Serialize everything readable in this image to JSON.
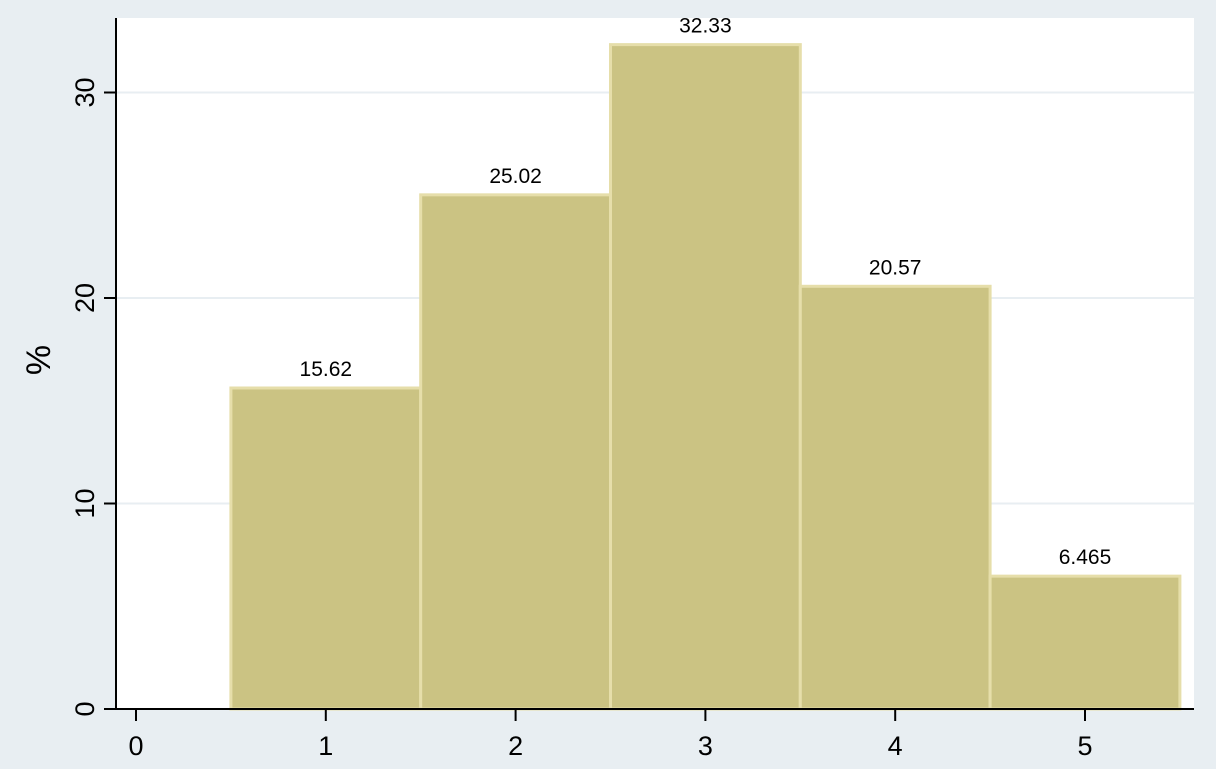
{
  "chart_data": {
    "type": "bar",
    "title": "",
    "xlabel": "",
    "ylabel": "%",
    "categories": [
      "1",
      "2",
      "3",
      "4",
      "5"
    ],
    "x": [
      1,
      2,
      3,
      4,
      5
    ],
    "values": [
      15.62,
      25.02,
      32.33,
      20.57,
      6.465
    ],
    "value_labels": [
      "15.62",
      "25.02",
      "32.33",
      "20.57",
      "6.465"
    ],
    "bar_width": 1,
    "xlim": [
      -0.1,
      5.5
    ],
    "ylim": [
      0,
      33
    ],
    "x_ticks": [
      "0",
      "1",
      "2",
      "3",
      "4",
      "5"
    ],
    "y_ticks": [
      "0",
      "10",
      "20",
      "30"
    ],
    "grid": "horizontal",
    "legend": "none"
  },
  "colors": {
    "page_background": "#e8eef2",
    "plot_background": "#ffffff",
    "bar_fill": "#cbc383",
    "bar_outline": "#e6deaa",
    "gridline": "#e8eef2",
    "axis": "#000000"
  }
}
